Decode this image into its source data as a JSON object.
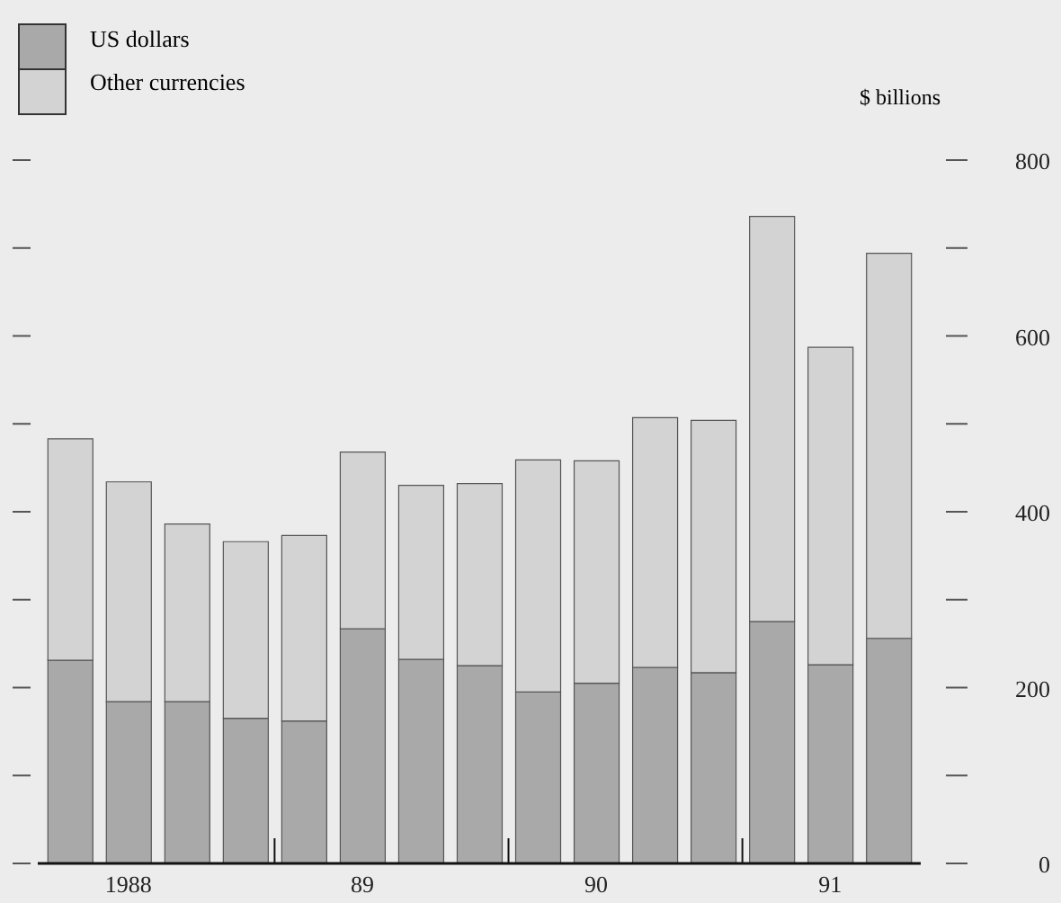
{
  "chart_data": {
    "type": "bar",
    "stacked": true,
    "ylabel": "$ billions",
    "legend": "top left",
    "grid": false,
    "categories": [
      null,
      "1988",
      null,
      null,
      null,
      "89",
      null,
      null,
      null,
      "90",
      null,
      null,
      null,
      "91",
      null
    ],
    "ylim": [
      0,
      800
    ],
    "yticks": [
      0,
      {
        "value": 100,
        "label": null
      },
      200,
      {
        "value": 300,
        "label": null
      },
      400,
      {
        "value": 500,
        "label": null
      },
      600,
      {
        "value": 700,
        "label": null
      },
      800
    ],
    "series": [
      {
        "name": "US dollars",
        "color": "#a9a9a9",
        "values": [
          231,
          184,
          184,
          165,
          162,
          267,
          232,
          225,
          195,
          205,
          223,
          217,
          275,
          226,
          256
        ]
      },
      {
        "name": "Other currencies",
        "color": "#d3d3d3",
        "values": [
          252,
          250,
          202,
          201,
          211,
          201,
          198,
          207,
          264,
          253,
          284,
          287,
          461,
          361,
          438
        ]
      }
    ]
  }
}
